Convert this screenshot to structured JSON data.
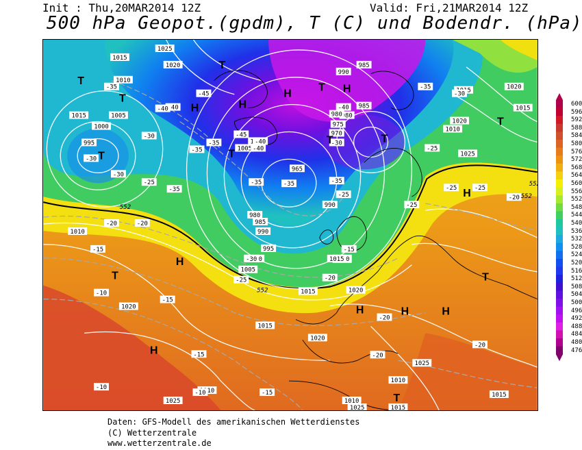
{
  "header": {
    "init": "Init : Thu,20MAR2014 12Z",
    "valid": "Valid: Fri,21MAR2014 12Z",
    "title": "500 hPa Geopot.(gpdm), T (C) und Bodendr. (hPa)"
  },
  "colorbar": {
    "labels": [
      "600",
      "596",
      "592",
      "588",
      "584",
      "580",
      "576",
      "572",
      "568",
      "564",
      "560",
      "556",
      "552",
      "548",
      "544",
      "540",
      "536",
      "532",
      "528",
      "524",
      "520",
      "516",
      "512",
      "508",
      "504",
      "500",
      "496",
      "492",
      "488",
      "484",
      "480",
      "476"
    ],
    "colors": [
      "#b0004a",
      "#c00030",
      "#d01828",
      "#c83a2c",
      "#d0502c",
      "#dc6424",
      "#e87c1c",
      "#ec9410",
      "#f0b010",
      "#f4d010",
      "#f4f000",
      "#d8f020",
      "#a8e830",
      "#70dc40",
      "#40d060",
      "#20c8a0",
      "#20c0c0",
      "#20a8e0",
      "#1090f0",
      "#1070f0",
      "#1050f0",
      "#2038f0",
      "#2020e0",
      "#4010d0",
      "#6010e0",
      "#8010e8",
      "#a010f0",
      "#c010f0",
      "#e020e0",
      "#d010b0",
      "#b00090",
      "#80006c"
    ]
  },
  "map": {
    "pressure_labels": [
      "1025",
      "1015",
      "1020",
      "1010",
      "1005",
      "1000",
      "995",
      "990",
      "985",
      "980",
      "975",
      "970",
      "965",
      "1010",
      "1015",
      "1020",
      "1025",
      "1015",
      "1010",
      "1020",
      "1015",
      "1020",
      "1025",
      "1015",
      "1010",
      "1015",
      "1020",
      "1025",
      "985",
      "990",
      "980",
      "1015",
      "1020",
      "1025",
      "1015",
      "1010",
      "1000",
      "1005",
      "1015",
      "1010",
      "1005",
      "1000",
      "995",
      "990",
      "985",
      "980",
      "1010",
      "1015"
    ],
    "temperature_labels": [
      "-40",
      "-45",
      "-40",
      "-35",
      "-35",
      "-35",
      "-35",
      "-30",
      "-30",
      "-30",
      "-25",
      "-25",
      "-20",
      "-20",
      "-20",
      "-15",
      "-15",
      "-15",
      "-10",
      "-10",
      "-20",
      "-20",
      "-25",
      "-30",
      "-35",
      "-40",
      "-45",
      "-40",
      "-35",
      "-30",
      "-25",
      "-25",
      "-20",
      "-15",
      "-10",
      "-15",
      "-20",
      "-25",
      "-35",
      "-40",
      "-35",
      "-30",
      "-25"
    ],
    "geopot_labels": [
      "552",
      "552",
      "552",
      "552"
    ],
    "high_marker": "H",
    "low_marker": "T"
  },
  "footer": {
    "line1": "Daten: GFS-Modell des amerikanischen Wetterdienstes",
    "line2": "(C) Wetterzentrale",
    "line3": "www.wetterzentrale.de"
  }
}
